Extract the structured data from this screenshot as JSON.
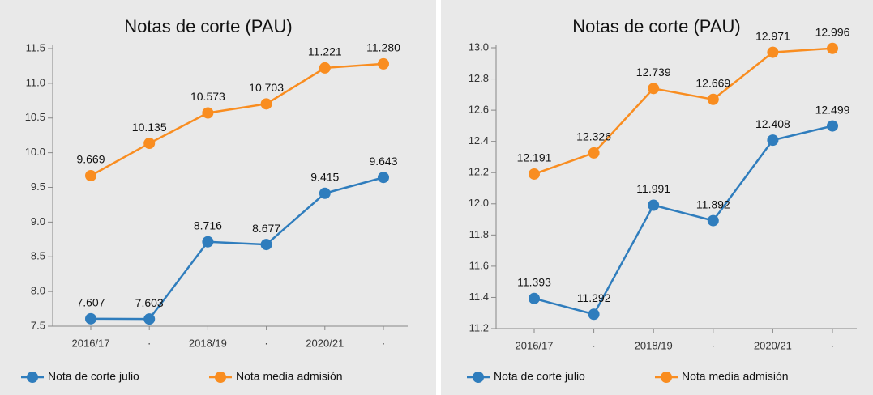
{
  "chart_data": [
    {
      "type": "line",
      "title": "Notas de corte (PAU)",
      "categories": [
        "2016/17",
        "·",
        "2018/19",
        "·",
        "2020/21",
        "·"
      ],
      "ylim": [
        7.5,
        11.5
      ],
      "yticks": [
        7.5,
        {
          "value": 8,
          "label": "8.0"
        },
        8.5,
        {
          "value": 9,
          "label": "9.0"
        },
        9.5,
        {
          "value": 10,
          "label": "10.0"
        },
        10.5,
        {
          "value": 11,
          "label": "11.0"
        },
        11.5
      ],
      "series": [
        {
          "name": "Nota de corte julio",
          "color": "#2f7dbd",
          "values": [
            7.607,
            7.603,
            8.716,
            8.677,
            9.415,
            9.643
          ],
          "value_labels": [
            "7.607",
            "7.603",
            "8.716",
            "8.677",
            "9.415",
            "9.643"
          ]
        },
        {
          "name": "Nota media admisión",
          "color": "#f98d20",
          "values": [
            9.669,
            10.135,
            10.573,
            10.703,
            11.221,
            11.28
          ],
          "value_labels": [
            "9.669",
            "10.135",
            "10.573",
            "10.703",
            "11.221",
            "11.280"
          ]
        }
      ]
    },
    {
      "type": "line",
      "title": "Notas de corte (PAU)",
      "categories": [
        "2016/17",
        "·",
        "2018/19",
        "·",
        "2020/21",
        "·"
      ],
      "ylim": [
        11.2,
        13.0
      ],
      "yticks": [
        11.2,
        11.4,
        11.6,
        11.8,
        {
          "value": 12,
          "label": "12.0"
        },
        12.2,
        12.4,
        12.6,
        12.8,
        {
          "value": 13,
          "label": "13.0"
        }
      ],
      "series": [
        {
          "name": "Nota de corte julio",
          "color": "#2f7dbd",
          "values": [
            11.393,
            11.292,
            11.991,
            11.892,
            12.408,
            12.499
          ],
          "value_labels": [
            "11.393",
            "11.292",
            "11.991",
            "11.892",
            "12.408",
            "12.499"
          ]
        },
        {
          "name": "Nota media admisión",
          "color": "#f98d20",
          "values": [
            12.191,
            12.326,
            12.739,
            12.669,
            12.971,
            12.996
          ],
          "value_labels": [
            "12.191",
            "12.326",
            "12.739",
            "12.669",
            "12.971",
            "12.996"
          ]
        }
      ]
    }
  ]
}
